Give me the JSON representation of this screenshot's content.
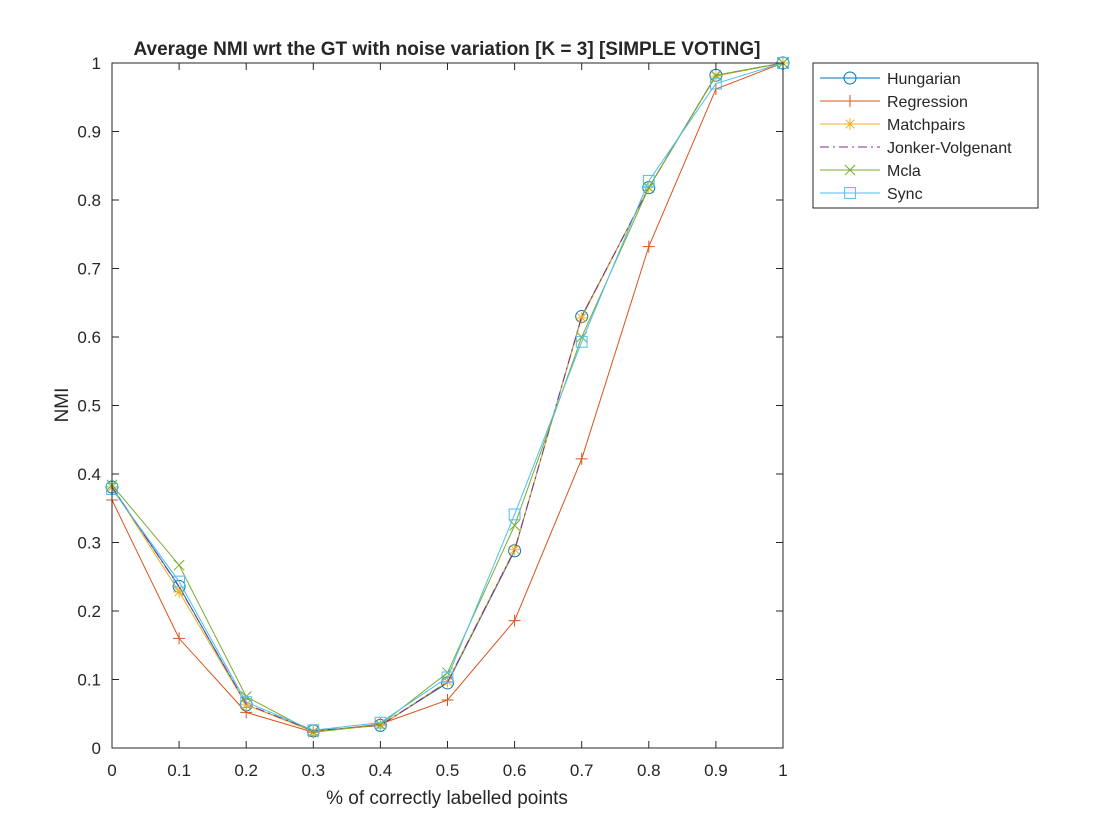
{
  "chart_data": {
    "type": "line",
    "title": "Average NMI wrt the GT with noise variation [K = 3] [SIMPLE VOTING]",
    "xlabel": "% of correctly labelled points",
    "ylabel": "NMI",
    "xlim": [
      0,
      1
    ],
    "ylim": [
      0,
      1
    ],
    "xticks": [
      "0",
      "0.1",
      "0.2",
      "0.3",
      "0.4",
      "0.5",
      "0.6",
      "0.7",
      "0.8",
      "0.9",
      "1"
    ],
    "yticks": [
      "0",
      "0.1",
      "0.2",
      "0.3",
      "0.4",
      "0.5",
      "0.6",
      "0.7",
      "0.8",
      "0.9",
      "1"
    ],
    "grid": false,
    "legend_position": "outside-top-right",
    "x": [
      0,
      0.1,
      0.2,
      0.3,
      0.4,
      0.5,
      0.6,
      0.7,
      0.8,
      0.9,
      1
    ],
    "series": [
      {
        "name": "Hungarian",
        "color": "#0072bd",
        "marker": "circle",
        "dash": "solid",
        "values": [
          0.381,
          0.236,
          0.063,
          0.025,
          0.033,
          0.095,
          0.288,
          0.63,
          0.818,
          0.982,
          1.0
        ]
      },
      {
        "name": "Regression",
        "color": "#d95319",
        "marker": "plus",
        "dash": "solid",
        "values": [
          0.362,
          0.16,
          0.052,
          0.023,
          0.035,
          0.07,
          0.186,
          0.422,
          0.732,
          0.962,
          1.0
        ]
      },
      {
        "name": "Matchpairs",
        "color": "#edb120",
        "marker": "asterisk",
        "dash": "solid",
        "values": [
          0.381,
          0.228,
          0.063,
          0.024,
          0.033,
          0.097,
          0.29,
          0.628,
          0.818,
          0.981,
          1.0
        ]
      },
      {
        "name": "Jonker-Volgenant",
        "color": "#7e2f8e",
        "marker": "none",
        "dash": "dashdot",
        "values": [
          0.381,
          0.235,
          0.064,
          0.025,
          0.033,
          0.096,
          0.289,
          0.63,
          0.818,
          0.982,
          1.0
        ]
      },
      {
        "name": "Mcla",
        "color": "#77ac30",
        "marker": "x",
        "dash": "solid",
        "values": [
          0.384,
          0.267,
          0.075,
          0.023,
          0.034,
          0.11,
          0.325,
          0.6,
          0.818,
          0.982,
          1.0
        ]
      },
      {
        "name": "Sync",
        "color": "#4dbeee",
        "marker": "square",
        "dash": "solid",
        "values": [
          0.378,
          0.243,
          0.067,
          0.026,
          0.037,
          0.103,
          0.341,
          0.593,
          0.828,
          0.97,
          1.0
        ]
      }
    ]
  }
}
